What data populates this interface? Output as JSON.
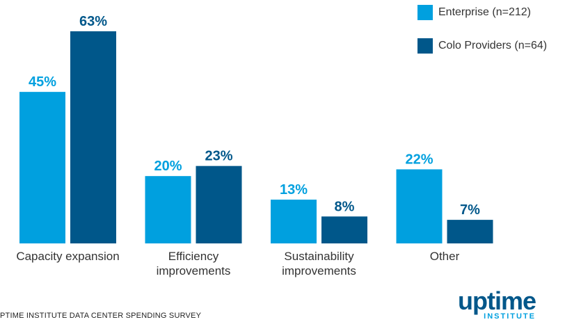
{
  "chart_data": {
    "type": "bar",
    "categories": [
      "Capacity expansion",
      "Efficiency\nimprovements",
      "Sustainability\nimprovements",
      "Other"
    ],
    "series": [
      {
        "name": "Enterprise (n=212)",
        "values": [
          45,
          20,
          13,
          22
        ],
        "labels": [
          "45%",
          "20%",
          "13%",
          "22%"
        ],
        "color": "#00a0df"
      },
      {
        "name": "Colo Providers (n=64)",
        "values": [
          63,
          23,
          8,
          7
        ],
        "labels": [
          "63%",
          "23%",
          "8%",
          "7%"
        ],
        "color": "#00578a"
      }
    ],
    "ylim": [
      0,
      63
    ],
    "grid": false,
    "legend_position": "top-right"
  },
  "footer": {
    "source": "PTIME INSTITUTE DATA CENTER SPENDING SURVEY"
  },
  "logo": {
    "word": "uptime",
    "sub": "INSTITUTE"
  }
}
